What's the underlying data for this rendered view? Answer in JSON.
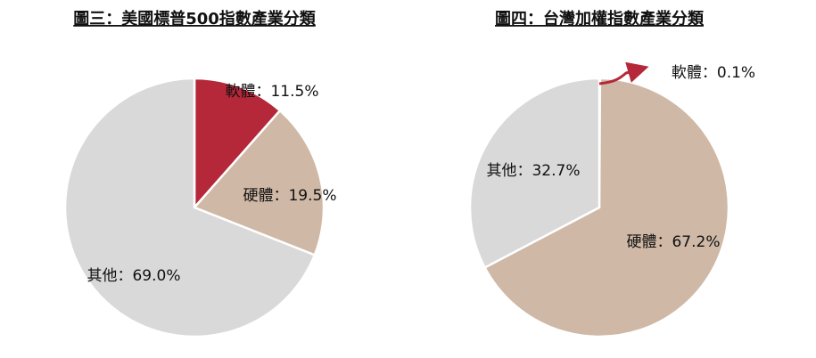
{
  "chart_data": [
    {
      "type": "pie",
      "title": "圖三：美國標普500指數產業分類",
      "values": [
        11.5,
        19.5,
        69.0
      ],
      "value_labels": [
        "軟體：11.5%",
        "硬體：19.5%",
        "其他：69.0%"
      ],
      "colors": [
        "#b5283a",
        "#cfb8a5",
        "#d9d9d9"
      ]
    },
    {
      "type": "pie",
      "title": "圖四：台灣加權指數產業分類",
      "values": [
        0.1,
        67.2,
        32.7
      ],
      "value_labels": [
        "軟體：0.1%",
        "硬體：67.2%",
        "其他：32.7%"
      ],
      "colors": [
        "#b5283a",
        "#cfb8a5",
        "#d9d9d9"
      ]
    }
  ]
}
